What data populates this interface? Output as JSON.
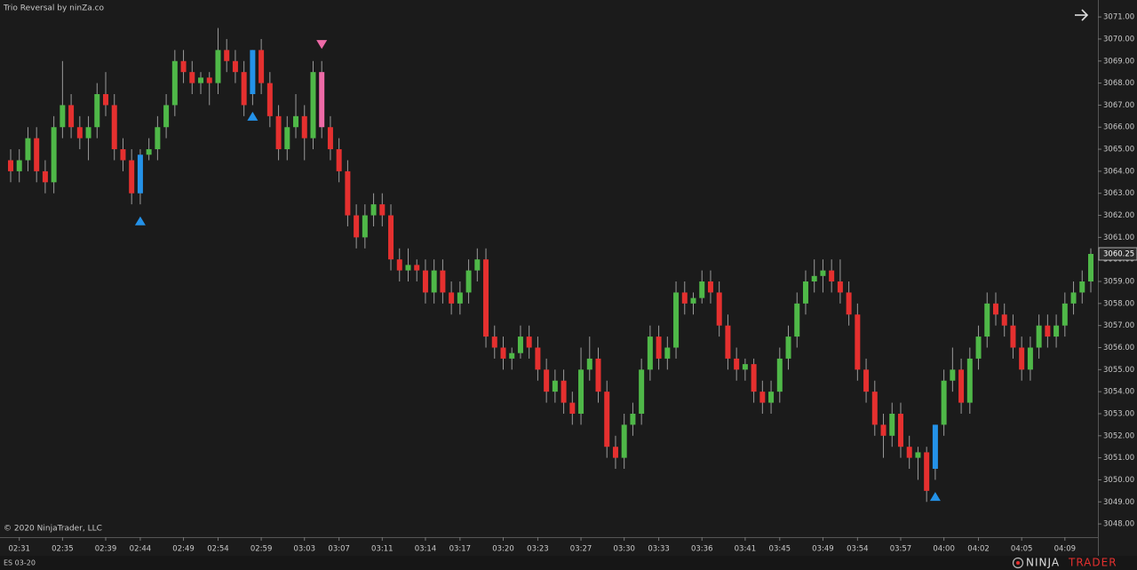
{
  "chart_data": {
    "type": "candlestick",
    "title": "Trio Reversal by ninZa.co",
    "copyright": "© 2020 NinjaTrader, LLC",
    "instrument": "ES 03-20",
    "brand": {
      "first": "NINJA",
      "second": "TRADER"
    },
    "colors": {
      "up": "#4fb848",
      "down": "#e5302f",
      "signal_up": "#2492e8",
      "signal_down": "#ee6aa7"
    },
    "ylim": [
      3047.4,
      3071.77
    ],
    "yticks": [
      {
        "value": 3048,
        "label": "3048.00"
      },
      {
        "value": 3049,
        "label": "3049.00"
      },
      {
        "value": 3050,
        "label": "3050.00"
      },
      {
        "value": 3051,
        "label": "3051.00"
      },
      {
        "value": 3052,
        "label": "3052.00"
      },
      {
        "value": 3053,
        "label": "3053.00"
      },
      {
        "value": 3054,
        "label": "3054.00"
      },
      {
        "value": 3055,
        "label": "3055.00"
      },
      {
        "value": 3056,
        "label": "3056.00"
      },
      {
        "value": 3057,
        "label": "3057.00"
      },
      {
        "value": 3058,
        "label": "3058.00"
      },
      {
        "value": 3059,
        "label": "3059.00"
      },
      {
        "value": 3060,
        "label": "3060.00"
      },
      {
        "value": 3061,
        "label": "3061.00"
      },
      {
        "value": 3062,
        "label": "3062.00"
      },
      {
        "value": 3063,
        "label": "3063.00"
      },
      {
        "value": 3064,
        "label": "3064.00"
      },
      {
        "value": 3065,
        "label": "3065.00"
      },
      {
        "value": 3066,
        "label": "3066.00"
      },
      {
        "value": 3067,
        "label": "3067.00"
      },
      {
        "value": 3068,
        "label": "3068.00"
      },
      {
        "value": 3069,
        "label": "3069.00"
      },
      {
        "value": 3070,
        "label": "3070.00"
      },
      {
        "value": 3071,
        "label": "3071.00"
      }
    ],
    "categories": [
      null,
      "02:31",
      null,
      null,
      null,
      null,
      "02:35",
      null,
      null,
      null,
      null,
      "02:39",
      null,
      null,
      null,
      "02:44",
      null,
      null,
      null,
      null,
      "02:49",
      null,
      null,
      null,
      "02:54",
      null,
      null,
      null,
      null,
      "02:59",
      null,
      null,
      null,
      null,
      "03:03",
      null,
      null,
      null,
      "03:07",
      null,
      null,
      null,
      null,
      "03:11",
      null,
      null,
      null,
      null,
      "03:14",
      null,
      null,
      null,
      "03:17",
      null,
      null,
      null,
      null,
      "03:20",
      null,
      null,
      null,
      "03:23",
      null,
      null,
      null,
      null,
      "03:27",
      null,
      null,
      null,
      null,
      "03:30",
      null,
      null,
      null,
      "03:33",
      null,
      null,
      null,
      null,
      "03:36",
      null,
      null,
      null,
      null,
      "03:41",
      null,
      null,
      null,
      "03:45",
      null,
      null,
      null,
      null,
      "03:49",
      null,
      null,
      null,
      "03:54",
      null,
      null,
      null,
      null,
      "03:57",
      null,
      null,
      null,
      null,
      "04:00",
      null,
      null,
      null,
      "04:02",
      null,
      null,
      null,
      null,
      "04:05",
      null,
      null,
      null,
      null,
      "04:09",
      null,
      null,
      null
    ],
    "candles": [
      [
        3064.5,
        3065,
        3063.5,
        3064
      ],
      [
        3064,
        3065,
        3063.5,
        3064.5
      ],
      [
        3064.5,
        3066,
        3064,
        3065.5
      ],
      [
        3065.5,
        3066,
        3063.5,
        3064
      ],
      [
        3064,
        3064.5,
        3063,
        3063.5
      ],
      [
        3063.5,
        3066.5,
        3063,
        3066
      ],
      [
        3066,
        3069,
        3065.5,
        3067
      ],
      [
        3067,
        3067.5,
        3065.5,
        3066
      ],
      [
        3066,
        3066.5,
        3065,
        3065.5
      ],
      [
        3065.5,
        3066.5,
        3064.5,
        3066
      ],
      [
        3066,
        3068,
        3065.5,
        3067.5
      ],
      [
        3067.5,
        3068.5,
        3066.5,
        3067
      ],
      [
        3067,
        3067.5,
        3064.5,
        3065
      ],
      [
        3065,
        3065.5,
        3064,
        3064.5
      ],
      [
        3064.5,
        3065,
        3062.5,
        3063
      ],
      [
        3063,
        3065,
        3062.5,
        3064.75
      ],
      [
        3064.75,
        3065.5,
        3064.5,
        3065
      ],
      [
        3065,
        3066.5,
        3064.5,
        3066
      ],
      [
        3066,
        3067.5,
        3065.5,
        3067
      ],
      [
        3067,
        3069.5,
        3066.5,
        3069
      ],
      [
        3069,
        3069.5,
        3068,
        3068.5
      ],
      [
        3068.5,
        3069,
        3067.5,
        3068
      ],
      [
        3068,
        3068.5,
        3067.5,
        3068.25
      ],
      [
        3068.25,
        3068.5,
        3067,
        3068
      ],
      [
        3068,
        3070.5,
        3067.5,
        3069.5
      ],
      [
        3069.5,
        3070,
        3068.5,
        3069
      ],
      [
        3069,
        3069.5,
        3068,
        3068.5
      ],
      [
        3068.5,
        3069,
        3066.5,
        3067
      ],
      [
        3067.5,
        3069.5,
        3067,
        3069.5
      ],
      [
        3069.5,
        3070,
        3067.5,
        3068
      ],
      [
        3068,
        3068.5,
        3066,
        3066.5
      ],
      [
        3066.5,
        3067,
        3064.5,
        3065
      ],
      [
        3065,
        3066.5,
        3064.5,
        3066
      ],
      [
        3066,
        3067.5,
        3065.5,
        3066.5
      ],
      [
        3066.5,
        3067,
        3064.5,
        3065.5
      ],
      [
        3065.5,
        3069,
        3065,
        3068.5
      ],
      [
        3068.5,
        3069,
        3065.5,
        3066
      ],
      [
        3066,
        3066.5,
        3064.5,
        3065
      ],
      [
        3065,
        3065.5,
        3063.5,
        3064
      ],
      [
        3064,
        3064.5,
        3061.5,
        3062
      ],
      [
        3062,
        3062.5,
        3060.5,
        3061
      ],
      [
        3061,
        3062.5,
        3060.5,
        3062
      ],
      [
        3062,
        3063,
        3061.5,
        3062.5
      ],
      [
        3062.5,
        3063,
        3061.5,
        3062
      ],
      [
        3062,
        3062.5,
        3059.5,
        3060
      ],
      [
        3060,
        3060.5,
        3059,
        3059.5
      ],
      [
        3059.5,
        3060.5,
        3059,
        3059.75
      ],
      [
        3059.75,
        3060,
        3059,
        3059.5
      ],
      [
        3059.5,
        3060,
        3058,
        3058.5
      ],
      [
        3058.5,
        3060,
        3058,
        3059.5
      ],
      [
        3059.5,
        3060,
        3058,
        3058.5
      ],
      [
        3058.5,
        3059,
        3057.5,
        3058
      ],
      [
        3058,
        3059,
        3057.5,
        3058.5
      ],
      [
        3058.5,
        3060,
        3058,
        3059.5
      ],
      [
        3059.5,
        3060.5,
        3059,
        3060
      ],
      [
        3060,
        3060.5,
        3056,
        3056.5
      ],
      [
        3056.5,
        3057,
        3055.5,
        3056
      ],
      [
        3056,
        3056.5,
        3055,
        3055.5
      ],
      [
        3055.5,
        3056,
        3055,
        3055.75
      ],
      [
        3055.75,
        3057,
        3055.5,
        3056.5
      ],
      [
        3056.5,
        3057,
        3055.5,
        3056
      ],
      [
        3056,
        3056.5,
        3054.5,
        3055
      ],
      [
        3055,
        3055.5,
        3053.5,
        3054
      ],
      [
        3054,
        3055,
        3053.5,
        3054.5
      ],
      [
        3054.5,
        3055,
        3053,
        3053.5
      ],
      [
        3053.5,
        3054,
        3052.5,
        3053
      ],
      [
        3053,
        3056,
        3052.5,
        3055
      ],
      [
        3055,
        3056.5,
        3054.5,
        3055.5
      ],
      [
        3055.5,
        3056,
        3053.5,
        3054
      ],
      [
        3054,
        3054.5,
        3051,
        3051.5
      ],
      [
        3051.5,
        3052,
        3050.5,
        3051
      ],
      [
        3051,
        3053,
        3050.5,
        3052.5
      ],
      [
        3052.5,
        3053.5,
        3052,
        3053
      ],
      [
        3053,
        3055.5,
        3052.5,
        3055
      ],
      [
        3055,
        3057,
        3054.5,
        3056.5
      ],
      [
        3056.5,
        3057,
        3055,
        3055.5
      ],
      [
        3055.5,
        3056.5,
        3055,
        3056
      ],
      [
        3056,
        3059,
        3055.5,
        3058.5
      ],
      [
        3058.5,
        3059,
        3057.5,
        3058
      ],
      [
        3058,
        3058.5,
        3057.5,
        3058.25
      ],
      [
        3058.25,
        3059.5,
        3058,
        3059
      ],
      [
        3059,
        3059.5,
        3058,
        3058.5
      ],
      [
        3058.5,
        3059,
        3056.5,
        3057
      ],
      [
        3057,
        3057.5,
        3055,
        3055.5
      ],
      [
        3055.5,
        3056,
        3054.5,
        3055
      ],
      [
        3055,
        3055.5,
        3054.5,
        3055.25
      ],
      [
        3055.25,
        3055.5,
        3053.5,
        3054
      ],
      [
        3054,
        3054.5,
        3053,
        3053.5
      ],
      [
        3053.5,
        3054.5,
        3053,
        3054
      ],
      [
        3054,
        3056,
        3053.5,
        3055.5
      ],
      [
        3055.5,
        3057,
        3055,
        3056.5
      ],
      [
        3056.5,
        3058.5,
        3056,
        3058
      ],
      [
        3058,
        3059.5,
        3057.5,
        3059
      ],
      [
        3059,
        3060,
        3058.5,
        3059.25
      ],
      [
        3059.25,
        3060,
        3058.5,
        3059.5
      ],
      [
        3059.5,
        3060,
        3058.5,
        3059
      ],
      [
        3059,
        3060,
        3058,
        3058.5
      ],
      [
        3058.5,
        3059,
        3057,
        3057.5
      ],
      [
        3057.5,
        3058,
        3054.5,
        3055
      ],
      [
        3055,
        3055.5,
        3053.5,
        3054
      ],
      [
        3054,
        3054.5,
        3052,
        3052.5
      ],
      [
        3052.5,
        3053,
        3051,
        3052
      ],
      [
        3052,
        3053.5,
        3051.5,
        3053
      ],
      [
        3053,
        3053.5,
        3051,
        3051.5
      ],
      [
        3051.5,
        3052,
        3050.5,
        3051
      ],
      [
        3051,
        3051.5,
        3050,
        3051.25
      ],
      [
        3051.25,
        3051.5,
        3049,
        3049.5
      ],
      [
        3050.5,
        3052.5,
        3050,
        3052.5
      ],
      [
        3052.5,
        3055,
        3052,
        3054.5
      ],
      [
        3054.5,
        3056,
        3054,
        3055
      ],
      [
        3055,
        3055.5,
        3053,
        3053.5
      ],
      [
        3053.5,
        3056,
        3053,
        3055.5
      ],
      [
        3055.5,
        3057,
        3055,
        3056.5
      ],
      [
        3056.5,
        3058.5,
        3056,
        3058
      ],
      [
        3058,
        3058.5,
        3057,
        3057.5
      ],
      [
        3057.5,
        3058,
        3056.5,
        3057
      ],
      [
        3057,
        3057.5,
        3055.5,
        3056
      ],
      [
        3056,
        3056.5,
        3054.5,
        3055
      ],
      [
        3055,
        3056.5,
        3054.5,
        3056
      ],
      [
        3056,
        3057.5,
        3055.5,
        3057
      ],
      [
        3057,
        3057.5,
        3056,
        3056.5
      ],
      [
        3056.5,
        3057.5,
        3056,
        3057
      ],
      [
        3057,
        3058.5,
        3056.5,
        3058
      ],
      [
        3058,
        3059,
        3057.5,
        3058.5
      ],
      [
        3058.5,
        3059.5,
        3058,
        3059
      ],
      [
        3059,
        3060.5,
        3058.5,
        3060.25
      ]
    ],
    "arrows_up": [
      null,
      null,
      null,
      null,
      null,
      null,
      null,
      null,
      null,
      null,
      null,
      null,
      null,
      null,
      null,
      3061.75,
      null,
      null,
      null,
      null,
      null,
      null,
      null,
      null,
      null,
      null,
      null,
      null,
      3066.5,
      null,
      null,
      null,
      null,
      null,
      null,
      null,
      null,
      null,
      null,
      null,
      null,
      null,
      null,
      null,
      null,
      null,
      null,
      null,
      null,
      null,
      null,
      null,
      null,
      null,
      null,
      null,
      null,
      null,
      null,
      null,
      null,
      null,
      null,
      null,
      null,
      null,
      null,
      null,
      null,
      null,
      null,
      null,
      null,
      null,
      null,
      null,
      null,
      null,
      null,
      null,
      null,
      null,
      null,
      null,
      null,
      null,
      null,
      null,
      null,
      null,
      null,
      null,
      null,
      null,
      null,
      null,
      null,
      null,
      null,
      null,
      null,
      null,
      null,
      null,
      null,
      null,
      null,
      3049.25,
      null,
      null,
      null,
      null,
      null,
      null,
      null,
      null,
      null,
      null,
      null,
      null,
      null,
      null,
      null,
      null,
      null,
      null
    ],
    "arrows_down": [
      null,
      null,
      null,
      null,
      null,
      null,
      null,
      null,
      null,
      null,
      null,
      null,
      null,
      null,
      null,
      null,
      null,
      null,
      null,
      null,
      null,
      null,
      null,
      null,
      null,
      null,
      null,
      null,
      null,
      null,
      null,
      null,
      null,
      null,
      null,
      null,
      3069.75,
      null,
      null,
      null,
      null,
      null,
      null,
      null,
      null,
      null,
      null,
      null,
      null,
      null,
      null,
      null,
      null,
      null,
      null,
      null,
      null,
      null,
      null,
      null,
      null,
      null,
      null,
      null,
      null,
      null,
      null,
      null,
      null,
      null,
      null,
      null,
      null,
      null,
      null,
      null,
      null,
      null,
      null,
      null,
      null,
      null,
      null,
      null,
      null,
      null,
      null,
      null,
      null,
      null,
      null,
      null,
      null,
      null,
      null,
      null,
      null,
      null,
      null,
      null,
      null,
      null,
      null,
      null,
      null,
      null,
      null,
      null,
      null,
      null,
      null,
      null,
      null,
      null,
      null,
      null,
      null,
      null,
      null,
      null,
      null,
      null,
      null,
      null,
      null,
      null
    ]
  }
}
